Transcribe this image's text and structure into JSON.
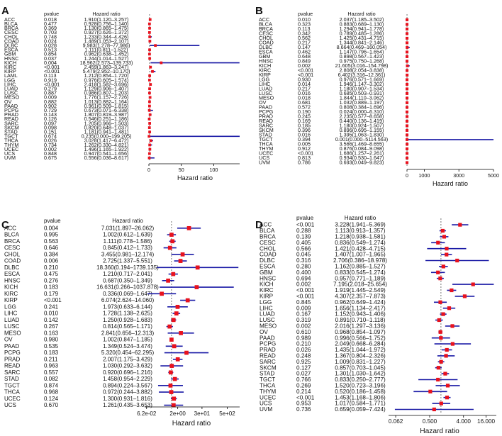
{
  "panels": [
    {
      "letter": "A",
      "col_pvalue": "pvalue",
      "col_hr": "Hazard ratio",
      "xlabel": "Hazard ratio",
      "rows": [
        {
          "name": "ACC",
          "p": "0.018",
          "hr": "1.910(1.120–3.257)"
        },
        {
          "name": "BLCA",
          "p": "0.477",
          "hr": "0.928(0.756–1.140)"
        },
        {
          "name": "BRCA",
          "p": "0.369",
          "hr": "1.130(0.865–1.475)"
        },
        {
          "name": "CESC",
          "p": "0.703",
          "hr": "0.927(0.626–1.372)"
        },
        {
          "name": "CHOL",
          "p": "0.748",
          "hr": "1.233(0.344–4.426)"
        },
        {
          "name": "COAD",
          "p": "0.024",
          "hr": "1.489(1.053–2.107)"
        },
        {
          "name": "DLBC",
          "p": "0.028",
          "hr": "9.983(1.278–77.986)"
        },
        {
          "name": "ESCA",
          "p": "0.513",
          "hr": "1.111(0.811–1.522)"
        },
        {
          "name": "GBM",
          "p": "0.854",
          "hr": "0.962(0.638–1.452)"
        },
        {
          "name": "HNSC",
          "p": "0.037",
          "hr": "1.244(1.014–1.527)"
        },
        {
          "name": "KICH",
          "p": "0.004",
          "hr": "18.962(2.573–139.733)"
        },
        {
          "name": "KIRC",
          "p": "<0.001",
          "hr": "2.459(1.863–3.247)"
        },
        {
          "name": "KIRP",
          "p": "<0.001",
          "hr": "5.479(2.952–10.170)"
        },
        {
          "name": "LAML",
          "p": "0.113",
          "hr": "1.212(0.854–1.720)"
        },
        {
          "name": "LGG",
          "p": "0.919",
          "hr": "0.976(0.605–1.574)"
        },
        {
          "name": "LIHC",
          "p": "<0.001",
          "hr": "2.418(1.582–3.696)"
        },
        {
          "name": "LUAD",
          "p": "0.279",
          "hr": "1.129(0.906–1.407)"
        },
        {
          "name": "LUSC",
          "p": "0.887",
          "hr": "0.986(0.807–1.203)"
        },
        {
          "name": "MESO",
          "p": "0.009",
          "hr": "1.776(1.157–2.726)"
        },
        {
          "name": "OV",
          "p": "0.882",
          "hr": "1.013(0.882–1.164)"
        },
        {
          "name": "PAAD",
          "p": "0.902",
          "hr": "0.961(0.509–1.815)"
        },
        {
          "name": "PCPG",
          "p": "0.729",
          "hr": "0.673(0.071–6.338)"
        },
        {
          "name": "PRAD",
          "p": "0.143",
          "hr": "1.807(0.819–3.987)"
        },
        {
          "name": "READ",
          "p": "0.126",
          "hr": "0.546(0.251–1.186)"
        },
        {
          "name": "SARC",
          "p": "0.097",
          "hr": "1.205(0.966–1.503)"
        },
        {
          "name": "SKCM",
          "p": "0.098",
          "hr": "0.820(0.648–1.037)"
        },
        {
          "name": "STAD",
          "p": "0.151",
          "hr": "1.181(0.941–1.481)"
        },
        {
          "name": "TGCT",
          "p": "0.674",
          "hr": "0.235(0.000–199.205)"
        },
        {
          "name": "THCA",
          "p": "0.026",
          "hr": "3.028(1.417–6.472)"
        },
        {
          "name": "THYM",
          "p": "0.734",
          "hr": "1.262(0.330–4.821)"
        },
        {
          "name": "UCEC",
          "p": "0.002",
          "hr": "1.496(1.165–1.922)"
        },
        {
          "name": "UCS",
          "p": "0.848",
          "hr": "0.947(0.541–1.656)"
        },
        {
          "name": "UVM",
          "p": "0.675",
          "hr": "0.556(0.036–8.617)"
        }
      ],
      "axis": {
        "scale": "linear",
        "min": 0,
        "max": 140,
        "ticks": [
          {
            "v": 0,
            "label": "0"
          },
          {
            "v": 50,
            "label": "50"
          },
          {
            "v": 100,
            "label": "100"
          }
        ]
      }
    },
    {
      "letter": "B",
      "col_pvalue": "pvalue",
      "col_hr": "Hazard ratio",
      "xlabel": "Hazard ratio",
      "rows": [
        {
          "name": "ACC",
          "p": "0.010",
          "hr": "2.037(1.185–3.502)"
        },
        {
          "name": "BLCA",
          "p": "0.323",
          "hr": "0.883(0.689–1.130)"
        },
        {
          "name": "BRCA",
          "p": "0.113",
          "hr": "1.294(0.941–1.778)"
        },
        {
          "name": "CESC",
          "p": "0.342",
          "hr": "0.789(0.485–1.286)"
        },
        {
          "name": "CHOL",
          "p": "0.562",
          "hr": "1.425(0.431–4.715)"
        },
        {
          "name": "COAD",
          "p": "0.217",
          "hr": "1.344(0.841–2.146)"
        },
        {
          "name": "DLBC",
          "p": "0.147",
          "hr": "8.664(0.469–160.054)"
        },
        {
          "name": "ESCA",
          "p": "0.462",
          "hr": "1.147(0.796–1.654)"
        },
        {
          "name": "GBM",
          "p": "0.648",
          "hr": "0.898(0.567–1.423)"
        },
        {
          "name": "HNSC",
          "p": "0.849",
          "hr": "0.975(0.750–1.268)"
        },
        {
          "name": "KICH",
          "p": "0.002",
          "hr": "21.605(3.016–154.798)"
        },
        {
          "name": "KIRC",
          "p": "<0.001",
          "hr": "2.808(2.054–3.838)"
        },
        {
          "name": "KIRP",
          "p": "<0.001",
          "hr": "6.402(3.316–12.361)"
        },
        {
          "name": "LGG",
          "p": "0.930",
          "hr": "0.976(0.571–1.669)"
        },
        {
          "name": "LIHC",
          "p": "0.014",
          "hr": "1.946(1.147–3.302)"
        },
        {
          "name": "LUAD",
          "p": "0.217",
          "hr": "1.180(0.907–1.534)"
        },
        {
          "name": "LUSC",
          "p": "0.016",
          "hr": "0.685(0.503–0.931)"
        },
        {
          "name": "MESO",
          "p": "0.018",
          "hr": "1.844(1.110–3.062)"
        },
        {
          "name": "OV",
          "p": "0.681",
          "hr": "1.032(0.889–1.197)"
        },
        {
          "name": "PAAD",
          "p": "0.572",
          "hr": "0.808(0.384–1.696)"
        },
        {
          "name": "PCPG",
          "p": "0.190",
          "hr": "0.024(0.000–6.310)"
        },
        {
          "name": "PRAD",
          "p": "0.245",
          "hr": "2.235(0.577–8.658)"
        },
        {
          "name": "READ",
          "p": "0.169",
          "hr": "0.440(0.136–1.419)"
        },
        {
          "name": "SARC",
          "p": "0.185",
          "hr": "1.180(0.924–1.507)"
        },
        {
          "name": "SKCM",
          "p": "0.396",
          "hr": "0.896(0.695–1.155)"
        },
        {
          "name": "STAD",
          "p": "0.016",
          "hr": "1.395(1.063–1.830)"
        },
        {
          "name": "TGCT",
          "p": "0.394",
          "hr": "0.001(0.000–5114.563)"
        },
        {
          "name": "THCA",
          "p": "0.005",
          "hr": "3.566(1.469–8.655)"
        },
        {
          "name": "THYM",
          "p": "0.912",
          "hr": "0.876(0.084–9.098)"
        },
        {
          "name": "UCEC",
          "p": "<0.001",
          "hr": "1.686(1.257–2.261)"
        },
        {
          "name": "UCS",
          "p": "0.813",
          "hr": "0.934(0.530–1.647)"
        },
        {
          "name": "UVM",
          "p": "0.786",
          "hr": "0.693(0.049–9.823)"
        }
      ],
      "axis": {
        "scale": "linear",
        "min": 0,
        "max": 5000,
        "ticks": [
          {
            "v": 0,
            "label": "0"
          },
          {
            "v": 1000,
            "label": "1000"
          },
          {
            "v": 3000,
            "label": "3000"
          },
          {
            "v": 5000,
            "label": "5000"
          }
        ]
      }
    },
    {
      "letter": "C",
      "col_pvalue": "pvalue",
      "col_hr": "Hazard ratio",
      "xlabel": "Hazard ratio",
      "rows": [
        {
          "name": "ACC",
          "p": "0.004",
          "hr": "7.031(1.897–26.062)"
        },
        {
          "name": "BLCA",
          "p": "0.995",
          "hr": "1.002(0.612–1.639)"
        },
        {
          "name": "BRCA",
          "p": "0.563",
          "hr": "1.111(0.778–1.586)"
        },
        {
          "name": "CESC",
          "p": "0.646",
          "hr": "0.845(0.412–1.733)"
        },
        {
          "name": "CHOL",
          "p": "0.384",
          "hr": "3.455(0.981–12.174)"
        },
        {
          "name": "COAD",
          "p": "0.006",
          "hr": "2.725(1.337–5.551)"
        },
        {
          "name": "DLBC",
          "p": "0.210",
          "hr": "18.360(0.194–1739.135)"
        },
        {
          "name": "ESCA",
          "p": "0.475",
          "hr": "1.210(0.717–2.041)"
        },
        {
          "name": "HNSC",
          "p": "0.276",
          "hr": "0.687(0.350–1.349)"
        },
        {
          "name": "KICH",
          "p": "0.183",
          "hr": "16.631(0.266–1037.878)"
        },
        {
          "name": "KIRC",
          "p": "0.179",
          "hr": "0.336(0.069–1.647)"
        },
        {
          "name": "KIRP",
          "p": "<0.001",
          "hr": "6.074(2.624–14.060)"
        },
        {
          "name": "LGG",
          "p": "0.241",
          "hr": "1.973(0.633–6.144)"
        },
        {
          "name": "LIHC",
          "p": "0.010",
          "hr": "1.728(1.138–2.625)"
        },
        {
          "name": "LUAD",
          "p": "0.142",
          "hr": "1.250(0.928–1.683)"
        },
        {
          "name": "LUSC",
          "p": "0.267",
          "hr": "0.814(0.565–1.171)"
        },
        {
          "name": "MESO",
          "p": "0.163",
          "hr": "2.841(0.656–12.313)"
        },
        {
          "name": "OV",
          "p": "0.980",
          "hr": "1.002(0.847–1.185)"
        },
        {
          "name": "PAAD",
          "p": "0.535",
          "hr": "1.349(0.524–3.474)"
        },
        {
          "name": "PCPG",
          "p": "0.183",
          "hr": "5.320(0.454–62.295)"
        },
        {
          "name": "PRAD",
          "p": "0.211",
          "hr": "2.007(1.175–3.429)"
        },
        {
          "name": "READ",
          "p": "0.963",
          "hr": "1.030(0.292–3.632)"
        },
        {
          "name": "SARC",
          "p": "0.557",
          "hr": "0.920(0.696–1.216)"
        },
        {
          "name": "STAD",
          "p": "0.082",
          "hr": "1.458(0.954–2.229)"
        },
        {
          "name": "TGCT",
          "p": "0.874",
          "hr": "0.894(0.224–3.567)"
        },
        {
          "name": "THCA",
          "p": "0.968",
          "hr": "0.972(0.244–3.882)"
        },
        {
          "name": "UCEC",
          "p": "0.124",
          "hr": "1.300(0.931–1.816)"
        },
        {
          "name": "UCS",
          "p": "0.670",
          "hr": "1.261(0.435–3.653)"
        }
      ],
      "axis": {
        "scale": "log",
        "min": 0.05,
        "max": 2000,
        "ticks": [
          {
            "v": 0.062,
            "label": "6.2e-02"
          },
          {
            "v": 2,
            "label": "2e+00"
          },
          {
            "v": 30,
            "label": "3e+01"
          },
          {
            "v": 500,
            "label": "5e+02"
          }
        ]
      }
    },
    {
      "letter": "D",
      "col_pvalue": "pvalue",
      "col_hr": "Hazard ratio",
      "xlabel": "Hazard ratio",
      "rows": [
        {
          "name": "ACC",
          "p": "<0.001",
          "hr": "3.228(1.941–5.369)"
        },
        {
          "name": "BLCA",
          "p": "0.288",
          "hr": "1.113(0.913–1.357)"
        },
        {
          "name": "BRCA",
          "p": "0.139",
          "hr": "1.218(0.938–1.581)"
        },
        {
          "name": "CESC",
          "p": "0.405",
          "hr": "0.836(0.549–1.274)"
        },
        {
          "name": "CHOL",
          "p": "0.566",
          "hr": "1.421(0.428–4.715)"
        },
        {
          "name": "COAD",
          "p": "0.045",
          "hr": "1.407(1.007–1.965)"
        },
        {
          "name": "DLBC",
          "p": "0.316",
          "hr": "2.706(0.386–18.978)"
        },
        {
          "name": "ESCA",
          "p": "0.280",
          "hr": "1.162(0.885–1.527)"
        },
        {
          "name": "GBM",
          "p": "0.400",
          "hr": "0.833(0.545–1.274)"
        },
        {
          "name": "HNSC",
          "p": "0.694",
          "hr": "0.957(0.771–1.189)"
        },
        {
          "name": "KICH",
          "p": "0.002",
          "hr": "7.195(2.018–25.654)"
        },
        {
          "name": "KIRC",
          "p": "<0.001",
          "hr": "1.919(1.445–2.549)"
        },
        {
          "name": "KIRP",
          "p": "<0.001",
          "hr": "4.307(2.357–7.873)"
        },
        {
          "name": "LGG",
          "p": "0.845",
          "hr": "0.962(0.649–1.424)"
        },
        {
          "name": "LIHC",
          "p": "0.009",
          "hr": "1.656(1.134–2.417)"
        },
        {
          "name": "LUAD",
          "p": "0.167",
          "hr": "1.152(0.943–1.406)"
        },
        {
          "name": "LUSC",
          "p": "0.319",
          "hr": "0.891(0.710–1.118)"
        },
        {
          "name": "MESO",
          "p": "0.002",
          "hr": "2.016(1.297–3.136)"
        },
        {
          "name": "OV",
          "p": "0.610",
          "hr": "0.968(0.854–1.097)"
        },
        {
          "name": "PAAD",
          "p": "0.989",
          "hr": "0.996(0.566–1.752)"
        },
        {
          "name": "PCPG",
          "p": "0.210",
          "hr": "2.049(0.668–6.284)"
        },
        {
          "name": "PRAD",
          "p": "0.026",
          "hr": "1.435(1.044–1.972)"
        },
        {
          "name": "READ",
          "p": "0.248",
          "hr": "1.367(0.804–2.326)"
        },
        {
          "name": "SARC",
          "p": "0.925",
          "hr": "1.009(0.831–1.227)"
        },
        {
          "name": "SKCM",
          "p": "0.127",
          "hr": "0.857(0.703–1.045)"
        },
        {
          "name": "STAD",
          "p": "0.027",
          "hr": "1.301(1.030–1.642)"
        },
        {
          "name": "TGCT",
          "p": "0.766",
          "hr": "0.833(0.250–2.777)"
        },
        {
          "name": "THCA",
          "p": "0.269",
          "hr": "1.520(0.723–3.196)"
        },
        {
          "name": "THYM",
          "p": "0.214",
          "hr": "0.520(0.186–1.458)"
        },
        {
          "name": "UCEC",
          "p": "<0.001",
          "hr": "1.453(1.168–1.806)"
        },
        {
          "name": "UCS",
          "p": "0.953",
          "hr": "1.017(0.584–1.771)"
        },
        {
          "name": "UVM",
          "p": "0.736",
          "hr": "0.659(0.059–7.424)"
        }
      ],
      "axis": {
        "scale": "log",
        "min": 0.04,
        "max": 30,
        "ticks": [
          {
            "v": 0.062,
            "label": "0.062"
          },
          {
            "v": 0.5,
            "label": "0.500"
          },
          {
            "v": 4,
            "label": "4.000"
          },
          {
            "v": 16,
            "label": "16.000"
          }
        ]
      }
    }
  ],
  "colors": {
    "box": "#e8121e",
    "ci": "#1a1aa6",
    "refline": "#555555",
    "text": "#111111"
  },
  "chart_data": [
    {
      "type": "forest",
      "panel": "A",
      "xlabel": "Hazard ratio",
      "xlim": [
        0,
        140
      ],
      "scale": "linear",
      "categories": [
        "ACC",
        "BLCA",
        "BRCA",
        "CESC",
        "CHOL",
        "COAD",
        "DLBC",
        "ESCA",
        "GBM",
        "HNSC",
        "KICH",
        "KIRC",
        "KIRP",
        "LAML",
        "LGG",
        "LIHC",
        "LUAD",
        "LUSC",
        "MESO",
        "OV",
        "PAAD",
        "PCPG",
        "PRAD",
        "READ",
        "SARC",
        "SKCM",
        "STAD",
        "TGCT",
        "THCA",
        "THYM",
        "UCEC",
        "UCS",
        "UVM"
      ]
    },
    {
      "type": "forest",
      "panel": "B",
      "xlabel": "Hazard ratio",
      "xlim": [
        0,
        5000
      ],
      "scale": "linear",
      "categories": [
        "ACC",
        "BLCA",
        "BRCA",
        "CESC",
        "CHOL",
        "COAD",
        "DLBC",
        "ESCA",
        "GBM",
        "HNSC",
        "KICH",
        "KIRC",
        "KIRP",
        "LGG",
        "LIHC",
        "LUAD",
        "LUSC",
        "MESO",
        "OV",
        "PAAD",
        "PCPG",
        "PRAD",
        "READ",
        "SARC",
        "SKCM",
        "STAD",
        "TGCT",
        "THCA",
        "THYM",
        "UCEC",
        "UCS",
        "UVM"
      ]
    },
    {
      "type": "forest",
      "panel": "C",
      "xlabel": "Hazard ratio",
      "scale": "log",
      "categories": [
        "ACC",
        "BLCA",
        "BRCA",
        "CESC",
        "CHOL",
        "COAD",
        "DLBC",
        "ESCA",
        "HNSC",
        "KICH",
        "KIRC",
        "KIRP",
        "LGG",
        "LIHC",
        "LUAD",
        "LUSC",
        "MESO",
        "OV",
        "PAAD",
        "PCPG",
        "PRAD",
        "READ",
        "SARC",
        "STAD",
        "TGCT",
        "THCA",
        "UCEC",
        "UCS"
      ]
    },
    {
      "type": "forest",
      "panel": "D",
      "xlabel": "Hazard ratio",
      "scale": "log",
      "categories": [
        "ACC",
        "BLCA",
        "BRCA",
        "CESC",
        "CHOL",
        "COAD",
        "DLBC",
        "ESCA",
        "GBM",
        "HNSC",
        "KICH",
        "KIRC",
        "KIRP",
        "LGG",
        "LIHC",
        "LUAD",
        "LUSC",
        "MESO",
        "OV",
        "PAAD",
        "PCPG",
        "PRAD",
        "READ",
        "SARC",
        "SKCM",
        "STAD",
        "TGCT",
        "THCA",
        "THYM",
        "UCEC",
        "UCS",
        "UVM"
      ]
    }
  ]
}
